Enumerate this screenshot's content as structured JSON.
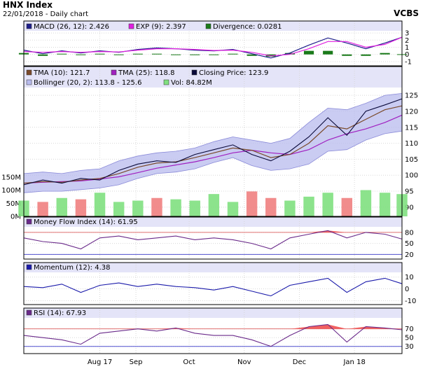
{
  "header": {
    "title": "HNX Index",
    "subtitle": "22/01/2018 - Daily chart",
    "brand": "VCBS"
  },
  "colors": {
    "macd": "#1d1d8a",
    "exp": "#e01fe0",
    "divergence": "#1a7a1a",
    "tma10": "#7a4a2a",
    "tma25": "#a020c0",
    "close": "#0a0a3a",
    "bollinger_fill": "#b8bbee",
    "bollinger_line": "#8a8ad8",
    "vol_up": "#80e080",
    "vol_down": "#f08080",
    "mfi": "#6a2a8a",
    "momentum": "#1a1aaa",
    "rsi": "#6a2a8a",
    "overbought_fill": "#f06060",
    "guide_red": "#e07070",
    "guide_blue": "#5050d0",
    "panel_top_band": "#e4e4f8"
  },
  "chart_data": [
    {
      "type": "line",
      "name": "macd_panel",
      "legend": [
        {
          "label": "MACD (26, 12): 2.426",
          "color": "#1d1d8a"
        },
        {
          "label": "EXP (9): 2.397",
          "color": "#e01fe0"
        },
        {
          "label": "Divergence: 0.0281",
          "color": "#1a7a1a"
        }
      ],
      "y_ticks": [
        "-1",
        "0",
        "1",
        "2",
        "3"
      ],
      "ylim": [
        -1.2,
        3.3
      ],
      "x": [
        0,
        10,
        20,
        30,
        40,
        50,
        60,
        70,
        80,
        90,
        100,
        110,
        120,
        130,
        140,
        150,
        160,
        170,
        180,
        190,
        199
      ],
      "series": [
        {
          "key": "macd",
          "values": [
            0.6,
            0.1,
            0.5,
            0.2,
            0.5,
            0.3,
            0.7,
            0.9,
            0.8,
            0.6,
            0.5,
            0.7,
            0.1,
            -0.5,
            0.2,
            1.3,
            2.3,
            1.6,
            0.8,
            1.6,
            2.4
          ]
        },
        {
          "key": "exp",
          "values": [
            0.4,
            0.3,
            0.4,
            0.3,
            0.4,
            0.35,
            0.6,
            0.8,
            0.8,
            0.7,
            0.55,
            0.6,
            0.3,
            -0.2,
            0.0,
            0.8,
            1.8,
            1.8,
            1.0,
            1.4,
            2.4
          ]
        }
      ],
      "divergence": [
        0.2,
        -0.2,
        0.1,
        -0.1,
        0.1,
        -0.05,
        0.1,
        0.1,
        0.0,
        -0.1,
        -0.05,
        0.1,
        -0.2,
        -0.3,
        0.2,
        0.5,
        0.5,
        -0.2,
        -0.2,
        0.2,
        0.03
      ]
    },
    {
      "type": "line",
      "name": "price_panel",
      "legend": [
        {
          "label": "TMA (10): 121.7",
          "color": "#7a4a2a"
        },
        {
          "label": "TMA (25): 118.8",
          "color": "#a020c0"
        },
        {
          "label": "Closing Price: 123.9",
          "color": "#0a0a3a"
        },
        {
          "label": "Bollinger (20, 2): 113.8 - 125.6",
          "color": "#b8bbee"
        },
        {
          "label": "Vol: 84.82M",
          "color": "#80e080"
        }
      ],
      "y_ticks": [
        "90",
        "95",
        "100",
        "105",
        "110",
        "115",
        "120",
        "125"
      ],
      "ylim": [
        88,
        127
      ],
      "vol_ticks": [
        "0M",
        "50M",
        "100M",
        "150M"
      ],
      "vol_max": 160,
      "x": [
        0,
        10,
        20,
        30,
        40,
        50,
        60,
        70,
        80,
        90,
        100,
        110,
        120,
        130,
        140,
        150,
        160,
        170,
        180,
        190,
        199
      ],
      "close": [
        97.0,
        98.5,
        97.5,
        99.0,
        98.5,
        101.5,
        103.5,
        104.5,
        104.0,
        106.5,
        108.0,
        109.5,
        106.5,
        104.5,
        107.5,
        112.0,
        118.0,
        112.5,
        120.0,
        122.0,
        123.9
      ],
      "tma10": [
        97.5,
        98.0,
        97.8,
        98.5,
        99.0,
        100.5,
        102.5,
        103.8,
        104.2,
        105.5,
        107.0,
        108.5,
        107.8,
        105.5,
        106.5,
        110.0,
        115.5,
        114.5,
        117.5,
        120.5,
        121.7
      ],
      "tma25": [
        97.5,
        97.8,
        98.0,
        98.2,
        98.8,
        99.5,
        100.8,
        102.2,
        103.2,
        104.2,
        105.5,
        107.0,
        107.8,
        107.0,
        106.5,
        108.0,
        111.0,
        113.0,
        114.5,
        116.5,
        118.8
      ],
      "boll_upper": [
        100.5,
        101.0,
        100.5,
        101.5,
        102.0,
        104.5,
        106.0,
        107.0,
        107.5,
        108.5,
        110.5,
        112.0,
        111.0,
        110.0,
        111.5,
        116.5,
        121.0,
        120.5,
        122.5,
        125.0,
        125.6
      ],
      "boll_lower": [
        94.5,
        95.0,
        95.0,
        95.5,
        96.0,
        97.0,
        99.0,
        100.5,
        101.0,
        102.0,
        104.0,
        105.5,
        103.0,
        101.5,
        102.0,
        103.5,
        107.5,
        108.0,
        111.0,
        113.0,
        113.8
      ],
      "volume": [
        60,
        55,
        70,
        65,
        90,
        55,
        60,
        70,
        65,
        60,
        85,
        55,
        95,
        70,
        60,
        75,
        90,
        70,
        100,
        90,
        84.82
      ],
      "volume_up": [
        true,
        false,
        true,
        false,
        true,
        true,
        true,
        false,
        true,
        true,
        true,
        true,
        false,
        false,
        true,
        true,
        true,
        false,
        true,
        true,
        true
      ]
    },
    {
      "type": "line",
      "name": "mfi_panel",
      "legend": [
        {
          "label": "Money Flow Index (14): 61.95",
          "color": "#6a2a8a"
        }
      ],
      "y_ticks": [
        "20",
        "50",
        "80"
      ],
      "ylim": [
        15,
        95
      ],
      "guides": [
        80,
        20
      ],
      "x": [
        0,
        10,
        20,
        30,
        40,
        50,
        60,
        70,
        80,
        90,
        100,
        110,
        120,
        130,
        140,
        150,
        160,
        170,
        180,
        190,
        199
      ],
      "values": [
        65,
        55,
        50,
        35,
        65,
        70,
        60,
        65,
        70,
        60,
        65,
        60,
        50,
        35,
        65,
        75,
        85,
        65,
        80,
        75,
        61.95
      ]
    },
    {
      "type": "line",
      "name": "momentum_panel",
      "legend": [
        {
          "label": "Momentum (12): 4.38",
          "color": "#1a1aaa"
        }
      ],
      "y_ticks": [
        "-10",
        "0",
        "10"
      ],
      "ylim": [
        -11,
        14
      ],
      "x": [
        0,
        10,
        20,
        30,
        40,
        50,
        60,
        70,
        80,
        90,
        100,
        110,
        120,
        130,
        140,
        150,
        160,
        170,
        180,
        190,
        199
      ],
      "values": [
        2,
        1,
        4,
        -3,
        3,
        5,
        2,
        4,
        2,
        1,
        -1,
        2,
        -2,
        -6,
        3,
        6,
        9,
        -3,
        6,
        9,
        4.38
      ]
    },
    {
      "type": "line",
      "name": "rsi_panel",
      "legend": [
        {
          "label": "RSI (14): 67.93",
          "color": "#6a2a8a"
        }
      ],
      "y_ticks": [
        "30",
        "50",
        "70"
      ],
      "ylim": [
        20,
        95
      ],
      "guides": [
        70,
        30
      ],
      "x": [
        0,
        10,
        20,
        30,
        40,
        50,
        60,
        70,
        80,
        90,
        100,
        110,
        120,
        130,
        140,
        150,
        160,
        170,
        180,
        190,
        199
      ],
      "values": [
        55,
        50,
        45,
        35,
        60,
        65,
        70,
        65,
        72,
        60,
        55,
        55,
        45,
        30,
        55,
        75,
        80,
        40,
        75,
        72,
        67.93
      ]
    }
  ],
  "x_axis": {
    "labels": [
      "Aug 17",
      "Sep",
      "Oct",
      "Nov",
      "Dec",
      "Jan 18"
    ],
    "positions": [
      40,
      59,
      87,
      116,
      145,
      174
    ],
    "xlim": [
      0,
      199
    ]
  }
}
